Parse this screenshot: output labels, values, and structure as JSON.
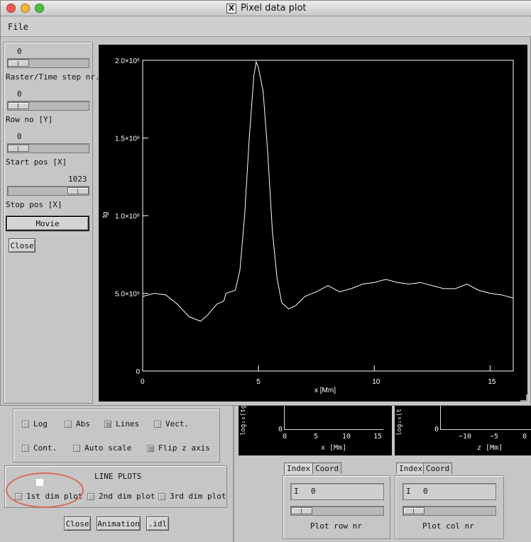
{
  "window": {
    "title": "Pixel data plot"
  },
  "menu": {
    "file": "File"
  },
  "left_panel": {
    "raster": {
      "value": "0",
      "label": "Raster/Time step nr."
    },
    "row": {
      "value": "0",
      "label": "Row no [Y]"
    },
    "start": {
      "value": "0",
      "label": "Start pos [X]"
    },
    "stop": {
      "value": "1023",
      "label": "Stop pos [X]"
    },
    "movie_label": "Movie",
    "close_label": "Close"
  },
  "chart_data": {
    "type": "line",
    "ylabel": "tg",
    "xlabel": "x [Mm]",
    "xlim": [
      0,
      16
    ],
    "ylim": [
      0,
      2000000
    ],
    "x_ticks": [
      0,
      5,
      10,
      15
    ],
    "y_ticks": [
      0,
      500000,
      1000000,
      1500000,
      2000000
    ],
    "y_tick_labels": [
      "0",
      "5.0×10⁵",
      "1.0×10⁶",
      "1.5×10⁶",
      "2.0×10⁶"
    ],
    "grid": false,
    "series": [
      {
        "color": "#ffffff",
        "x": [
          0,
          0.5,
          1,
          1.5,
          2,
          2.5,
          2.8,
          3.2,
          3.5,
          3.6,
          3.8,
          4.0,
          4.2,
          4.4,
          4.6,
          4.8,
          4.9,
          5.0,
          5.2,
          5.4,
          5.6,
          5.8,
          6.0,
          6.3,
          6.6,
          7,
          7.5,
          8,
          8.5,
          9,
          9.5,
          10,
          10.5,
          11,
          11.5,
          12,
          12.5,
          13,
          13.5,
          14,
          14.5,
          15,
          15.5,
          16
        ],
        "y": [
          480000,
          500000,
          490000,
          430000,
          350000,
          320000,
          360000,
          430000,
          450000,
          500000,
          510000,
          520000,
          650000,
          1000000,
          1500000,
          1900000,
          1990000,
          1950000,
          1800000,
          1400000,
          900000,
          600000,
          440000,
          400000,
          420000,
          480000,
          510000,
          550000,
          510000,
          530000,
          560000,
          570000,
          590000,
          570000,
          560000,
          570000,
          550000,
          530000,
          530000,
          560000,
          520000,
          500000,
          490000,
          470000
        ]
      }
    ]
  },
  "options": {
    "log": "Log",
    "abs": "Abs",
    "lines": "Lines",
    "vect": "Vect.",
    "cont": "Cont.",
    "auto_scale": "Auto scale",
    "flip_z": "Flip z axis"
  },
  "line_plots": {
    "title": "LINE PLOTS",
    "first": "1st dim plot",
    "second": "2nd dim plot",
    "third": "3rd dim plot"
  },
  "bottom_buttons": {
    "close": "Close",
    "animation": "Animation",
    "idl": ".idl"
  },
  "small_plot_1": {
    "ylabel": "log₁₀(tg",
    "xlabel": "x [Mm]",
    "ticks": [
      "0",
      "5",
      "10",
      "15"
    ],
    "y0": "0"
  },
  "small_plot_2": {
    "ylabel": "log₁₀(t",
    "xlabel": "z [Mm]",
    "ticks": [
      "−10",
      "−5",
      "0"
    ],
    "y0": "0"
  },
  "row_panel": {
    "tab_index": "Index",
    "tab_coord": "Coord",
    "value": "0",
    "label": "Plot row nr"
  },
  "col_panel": {
    "tab_index": "Index",
    "tab_coord": "Coord",
    "value": "0",
    "label": "Plot col nr"
  }
}
